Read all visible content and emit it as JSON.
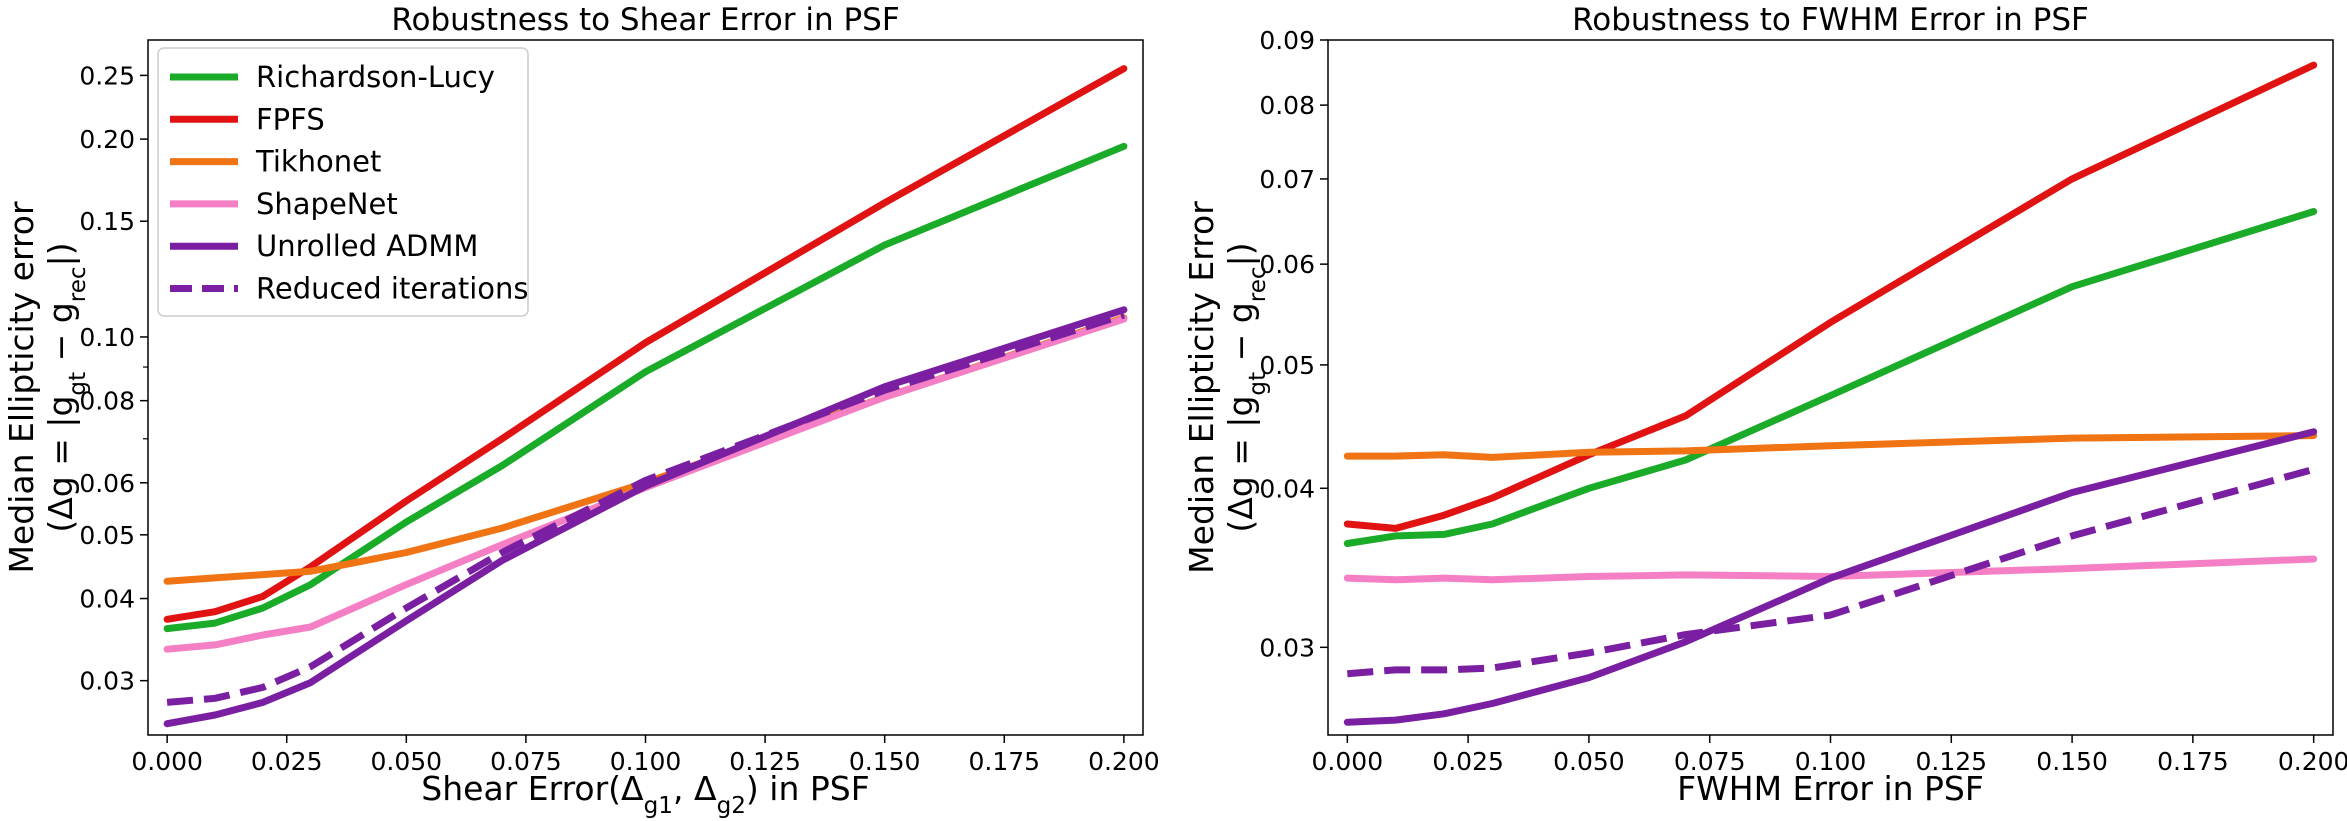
{
  "chart_data": [
    {
      "type": "line",
      "title": "Robustness to Shear Error in PSF",
      "xlabel": "Shear Error(Δ_g₁, Δ_g₂) in PSF",
      "ylabel": [
        "Median Ellipticity error",
        "(Δg = |g_gt − g_rec|)"
      ],
      "xlim": [
        -0.004,
        0.204
      ],
      "ylim": [
        0.0248,
        0.283
      ],
      "yscale": "log",
      "grid": false,
      "legend": "top-left",
      "x": [
        0.0,
        0.01,
        0.02,
        0.03,
        0.05,
        0.07,
        0.1,
        0.15,
        0.2
      ],
      "xticks": [
        0.0,
        0.025,
        0.05,
        0.075,
        0.1,
        0.125,
        0.15,
        0.175,
        0.2
      ],
      "xtick_labels": [
        "0.000",
        "0.025",
        "0.050",
        "0.075",
        "0.100",
        "0.125",
        "0.150",
        "0.175",
        "0.200"
      ],
      "yticks": [
        0.03,
        0.04,
        0.05,
        0.06,
        0.08,
        0.1,
        0.15,
        0.2,
        0.25
      ],
      "ytick_labels": [
        "0.03",
        "0.04",
        "0.05",
        "0.06",
        "0.08",
        "0.10",
        "0.15",
        "0.20",
        "0.25"
      ],
      "series": [
        {
          "name": "Richardson-Lucy",
          "color": "#1aab28",
          "dash": false,
          "values": [
            0.036,
            0.0367,
            0.0387,
            0.042,
            0.0523,
            0.0637,
            0.0885,
            0.138,
            0.195
          ]
        },
        {
          "name": "FPFS",
          "color": "#e01212",
          "dash": false,
          "values": [
            0.0372,
            0.0382,
            0.0403,
            0.0447,
            0.0563,
            0.07,
            0.098,
            0.16,
            0.256
          ]
        },
        {
          "name": "Tikhonet",
          "color": "#f07314",
          "dash": false,
          "values": [
            0.0425,
            0.043,
            0.0435,
            0.044,
            0.047,
            0.0512,
            0.06,
            0.081,
            0.107
          ]
        },
        {
          "name": "ShapeNet",
          "color": "#f47fc4",
          "dash": false,
          "values": [
            0.0335,
            0.034,
            0.0352,
            0.0362,
            0.042,
            0.0483,
            0.059,
            0.081,
            0.1065
          ]
        },
        {
          "name": "Unrolled ADMM",
          "color": "#7a1fa2",
          "dash": false,
          "values": [
            0.0258,
            0.0266,
            0.0278,
            0.0298,
            0.037,
            0.0457,
            0.0593,
            0.084,
            0.11
          ]
        },
        {
          "name": "Reduced iterations",
          "color": "#7a1fa2",
          "dash": true,
          "values": [
            0.0278,
            0.0282,
            0.0293,
            0.0315,
            0.0387,
            0.047,
            0.0605,
            0.083,
            0.108
          ]
        }
      ]
    },
    {
      "type": "line",
      "title": "Robustness to FWHM Error in PSF",
      "xlabel": "FWHM Error in PSF",
      "ylabel": [
        "Median Ellipticity Error",
        "(Δg = |g_gt − g_rec|)"
      ],
      "xlim": [
        -0.004,
        0.204
      ],
      "ylim": [
        0.0256,
        0.09
      ],
      "yscale": "log",
      "grid": false,
      "legend": "none",
      "x": [
        0.0,
        0.01,
        0.02,
        0.03,
        0.05,
        0.07,
        0.1,
        0.15,
        0.2
      ],
      "xticks": [
        0.0,
        0.025,
        0.05,
        0.075,
        0.1,
        0.125,
        0.15,
        0.175,
        0.2
      ],
      "xtick_labels": [
        "0.000",
        "0.025",
        "0.050",
        "0.075",
        "0.100",
        "0.125",
        "0.150",
        "0.175",
        "0.200"
      ],
      "yticks": [
        0.03,
        0.04,
        0.05,
        0.06,
        0.07,
        0.08,
        0.09
      ],
      "ytick_labels": [
        "0.03",
        "0.04",
        "0.05",
        "0.06",
        "0.07",
        "0.08",
        "0.09"
      ],
      "series": [
        {
          "color": "#1aab28",
          "dash": false,
          "values": [
            0.0362,
            0.0367,
            0.0368,
            0.0375,
            0.04,
            0.0421,
            0.0473,
            0.0576,
            0.066
          ]
        },
        {
          "color": "#e01212",
          "dash": false,
          "values": [
            0.0375,
            0.0372,
            0.0381,
            0.0393,
            0.0425,
            0.0456,
            0.054,
            0.07,
            0.086
          ]
        },
        {
          "color": "#f07314",
          "dash": false,
          "values": [
            0.0424,
            0.0424,
            0.0425,
            0.0423,
            0.0427,
            0.0428,
            0.0432,
            0.0438,
            0.044
          ]
        },
        {
          "color": "#f47fc4",
          "dash": false,
          "values": [
            0.034,
            0.0339,
            0.034,
            0.0339,
            0.0341,
            0.0342,
            0.0341,
            0.0346,
            0.0352
          ]
        },
        {
          "color": "#7a1fa2",
          "dash": false,
          "values": [
            0.0262,
            0.0263,
            0.0266,
            0.0271,
            0.0284,
            0.0303,
            0.034,
            0.0397,
            0.0443
          ]
        },
        {
          "color": "#7a1fa2",
          "dash": true,
          "values": [
            0.0286,
            0.0288,
            0.0288,
            0.0289,
            0.0297,
            0.0307,
            0.0318,
            0.0367,
            0.0414
          ]
        }
      ]
    }
  ]
}
